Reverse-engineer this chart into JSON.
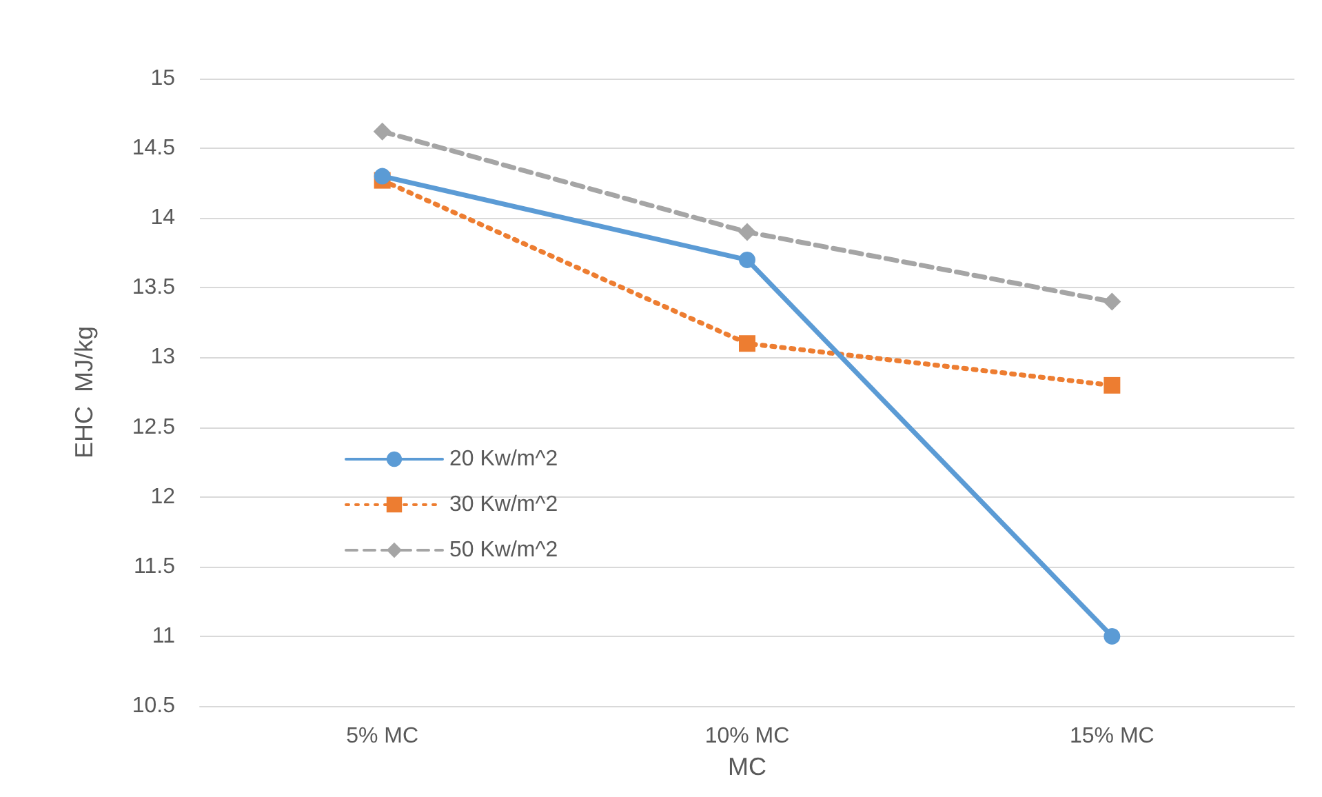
{
  "chart_data": {
    "type": "line",
    "xlabel": "MC",
    "ylabel": "EHC  MJ/kg",
    "categories": [
      "5% MC",
      "10% MC",
      "15% MC"
    ],
    "series": [
      {
        "name": "20 Kw/m^2",
        "color": "#5b9bd5",
        "values": [
          14.3,
          13.7,
          11.0
        ],
        "marker": "circle",
        "line_style": "solid"
      },
      {
        "name": "30 Kw/m^2",
        "color": "#ed7d31",
        "values": [
          14.27,
          13.1,
          12.8
        ],
        "marker": "square",
        "line_style": "dotted"
      },
      {
        "name": "50 Kw/m^2",
        "color": "#a5a5a5",
        "values": [
          14.62,
          13.9,
          13.4
        ],
        "marker": "diamond",
        "line_style": "dashed"
      }
    ],
    "ylim": [
      10.5,
      15
    ],
    "yticks": [
      10.5,
      11,
      11.5,
      12,
      12.5,
      13,
      13.5,
      14,
      14.5,
      15
    ],
    "grid": "y",
    "legend": "center left"
  }
}
